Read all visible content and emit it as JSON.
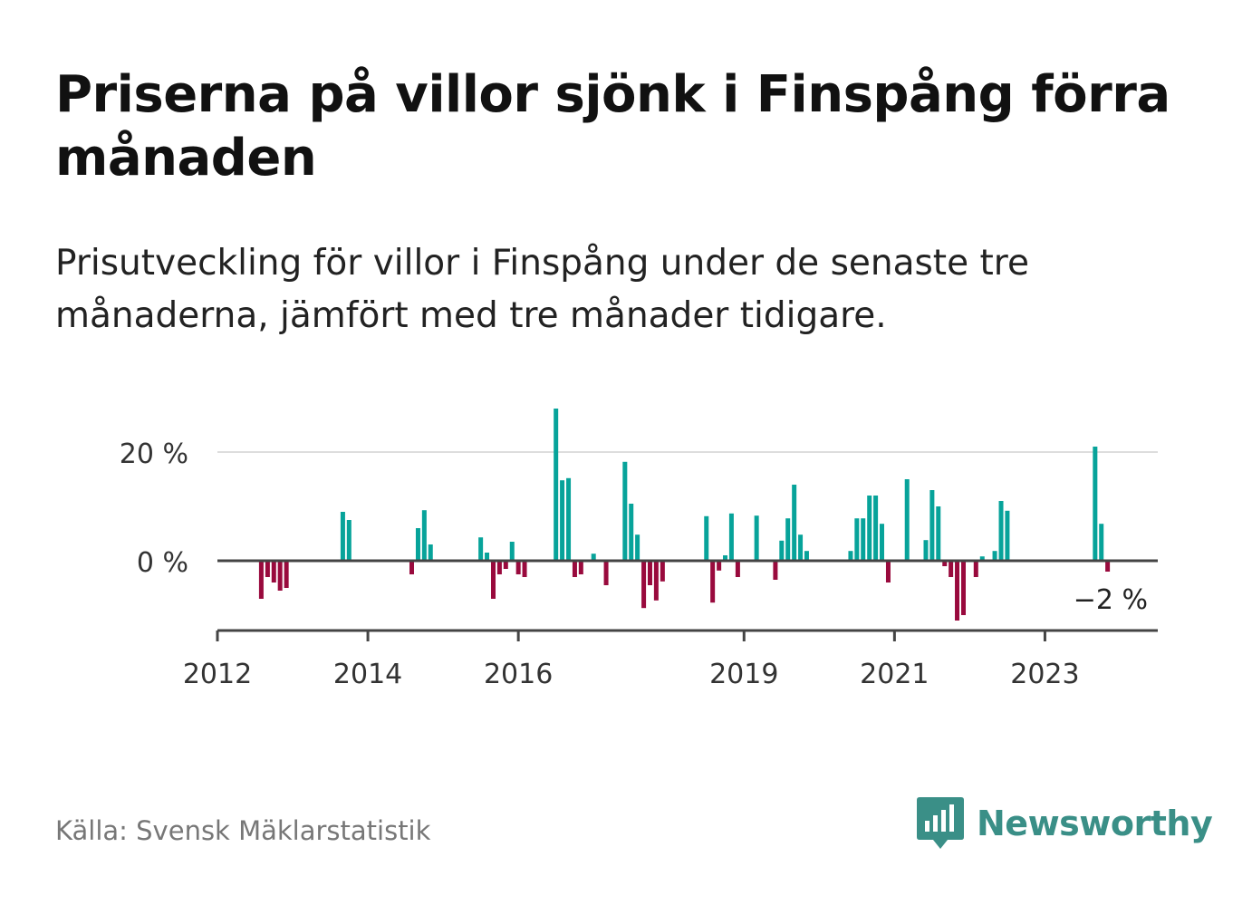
{
  "header": {
    "title": "Priserna på villor sjönk i Finspång förra månaden",
    "subtitle": "Prisutveckling för villor i Finspång under de senaste tre månaderna, jämfört med tre månader tidigare."
  },
  "chart_data": {
    "type": "bar",
    "title": "Priserna på villor sjönk i Finspång förra månaden",
    "subtitle": "Prisutveckling för villor i Finspång under de senaste tre månaderna, jämfört med tre månader tidigare.",
    "xlabel": "",
    "ylabel": "",
    "x_ticks": [
      "2012",
      "2014",
      "2016",
      "2019",
      "2021",
      "2023"
    ],
    "x_tick_positions": [
      2012.0,
      2014.0,
      2016.0,
      2019.0,
      2021.0,
      2023.0
    ],
    "x_range": [
      2012.0,
      2024.5
    ],
    "y_ticks": [
      "0 %",
      "20 %"
    ],
    "y_tick_values": [
      0,
      20
    ],
    "ylim": [
      -13,
      28
    ],
    "grid": true,
    "colors": {
      "positive": "#07a39a",
      "negative": "#990a3d",
      "axis": "#444444",
      "grid": "#dddddd"
    },
    "last_value_label": "−2 %",
    "last_value": -2,
    "series": [
      {
        "values": [
          {
            "x": 2012.583,
            "y": -7
          },
          {
            "x": 2012.667,
            "y": -3
          },
          {
            "x": 2012.75,
            "y": -4
          },
          {
            "x": 2012.833,
            "y": -5.5
          },
          {
            "x": 2012.917,
            "y": -5
          },
          {
            "x": 2013.667,
            "y": 9
          },
          {
            "x": 2013.75,
            "y": 7.5
          },
          {
            "x": 2014.583,
            "y": -2.5
          },
          {
            "x": 2014.667,
            "y": 6
          },
          {
            "x": 2014.75,
            "y": 9.3
          },
          {
            "x": 2014.833,
            "y": 3
          },
          {
            "x": 2015.5,
            "y": 4.3
          },
          {
            "x": 2015.583,
            "y": 1.5
          },
          {
            "x": 2015.667,
            "y": -7
          },
          {
            "x": 2015.75,
            "y": -2.5
          },
          {
            "x": 2015.833,
            "y": -1.5
          },
          {
            "x": 2015.917,
            "y": 3.5
          },
          {
            "x": 2016.0,
            "y": -2.5
          },
          {
            "x": 2016.083,
            "y": -3
          },
          {
            "x": 2016.5,
            "y": 28
          },
          {
            "x": 2016.583,
            "y": 14.8
          },
          {
            "x": 2016.667,
            "y": 15.2
          },
          {
            "x": 2016.75,
            "y": -3
          },
          {
            "x": 2016.833,
            "y": -2.5
          },
          {
            "x": 2017.0,
            "y": 1.3
          },
          {
            "x": 2017.167,
            "y": -4.5
          },
          {
            "x": 2017.417,
            "y": 18.2
          },
          {
            "x": 2017.5,
            "y": 10.5
          },
          {
            "x": 2017.583,
            "y": 4.8
          },
          {
            "x": 2017.667,
            "y": -8.7
          },
          {
            "x": 2017.75,
            "y": -4.5
          },
          {
            "x": 2017.833,
            "y": -7.3
          },
          {
            "x": 2017.917,
            "y": -3.8
          },
          {
            "x": 2018.5,
            "y": 8.2
          },
          {
            "x": 2018.583,
            "y": -7.7
          },
          {
            "x": 2018.667,
            "y": -1.8
          },
          {
            "x": 2018.75,
            "y": 1
          },
          {
            "x": 2018.833,
            "y": 8.7
          },
          {
            "x": 2018.917,
            "y": -3
          },
          {
            "x": 2019.167,
            "y": 8.3
          },
          {
            "x": 2019.417,
            "y": -3.5
          },
          {
            "x": 2019.5,
            "y": 3.7
          },
          {
            "x": 2019.583,
            "y": 7.8
          },
          {
            "x": 2019.667,
            "y": 14
          },
          {
            "x": 2019.75,
            "y": 4.8
          },
          {
            "x": 2019.833,
            "y": 1.8
          },
          {
            "x": 2020.417,
            "y": 1.8
          },
          {
            "x": 2020.5,
            "y": 7.8
          },
          {
            "x": 2020.583,
            "y": 7.8
          },
          {
            "x": 2020.667,
            "y": 12
          },
          {
            "x": 2020.75,
            "y": 12
          },
          {
            "x": 2020.833,
            "y": 6.8
          },
          {
            "x": 2020.917,
            "y": -4
          },
          {
            "x": 2021.167,
            "y": 15
          },
          {
            "x": 2021.417,
            "y": 3.8
          },
          {
            "x": 2021.5,
            "y": 13
          },
          {
            "x": 2021.583,
            "y": 10
          },
          {
            "x": 2021.667,
            "y": -1
          },
          {
            "x": 2021.75,
            "y": -3
          },
          {
            "x": 2021.833,
            "y": -11
          },
          {
            "x": 2021.917,
            "y": -10
          },
          {
            "x": 2022.083,
            "y": -3
          },
          {
            "x": 2022.167,
            "y": 0.8
          },
          {
            "x": 2022.333,
            "y": 1.8
          },
          {
            "x": 2022.417,
            "y": 11
          },
          {
            "x": 2022.5,
            "y": 9.2
          },
          {
            "x": 2023.667,
            "y": 21
          },
          {
            "x": 2023.75,
            "y": 6.8
          },
          {
            "x": 2023.833,
            "y": -2
          }
        ]
      }
    ]
  },
  "footer": {
    "source": "Källa: Svensk Mäklarstatistik",
    "brand": "Newsworthy",
    "logo_icon": "bar-chart-speech-bubble-icon",
    "brand_color": "#3a8f87"
  }
}
